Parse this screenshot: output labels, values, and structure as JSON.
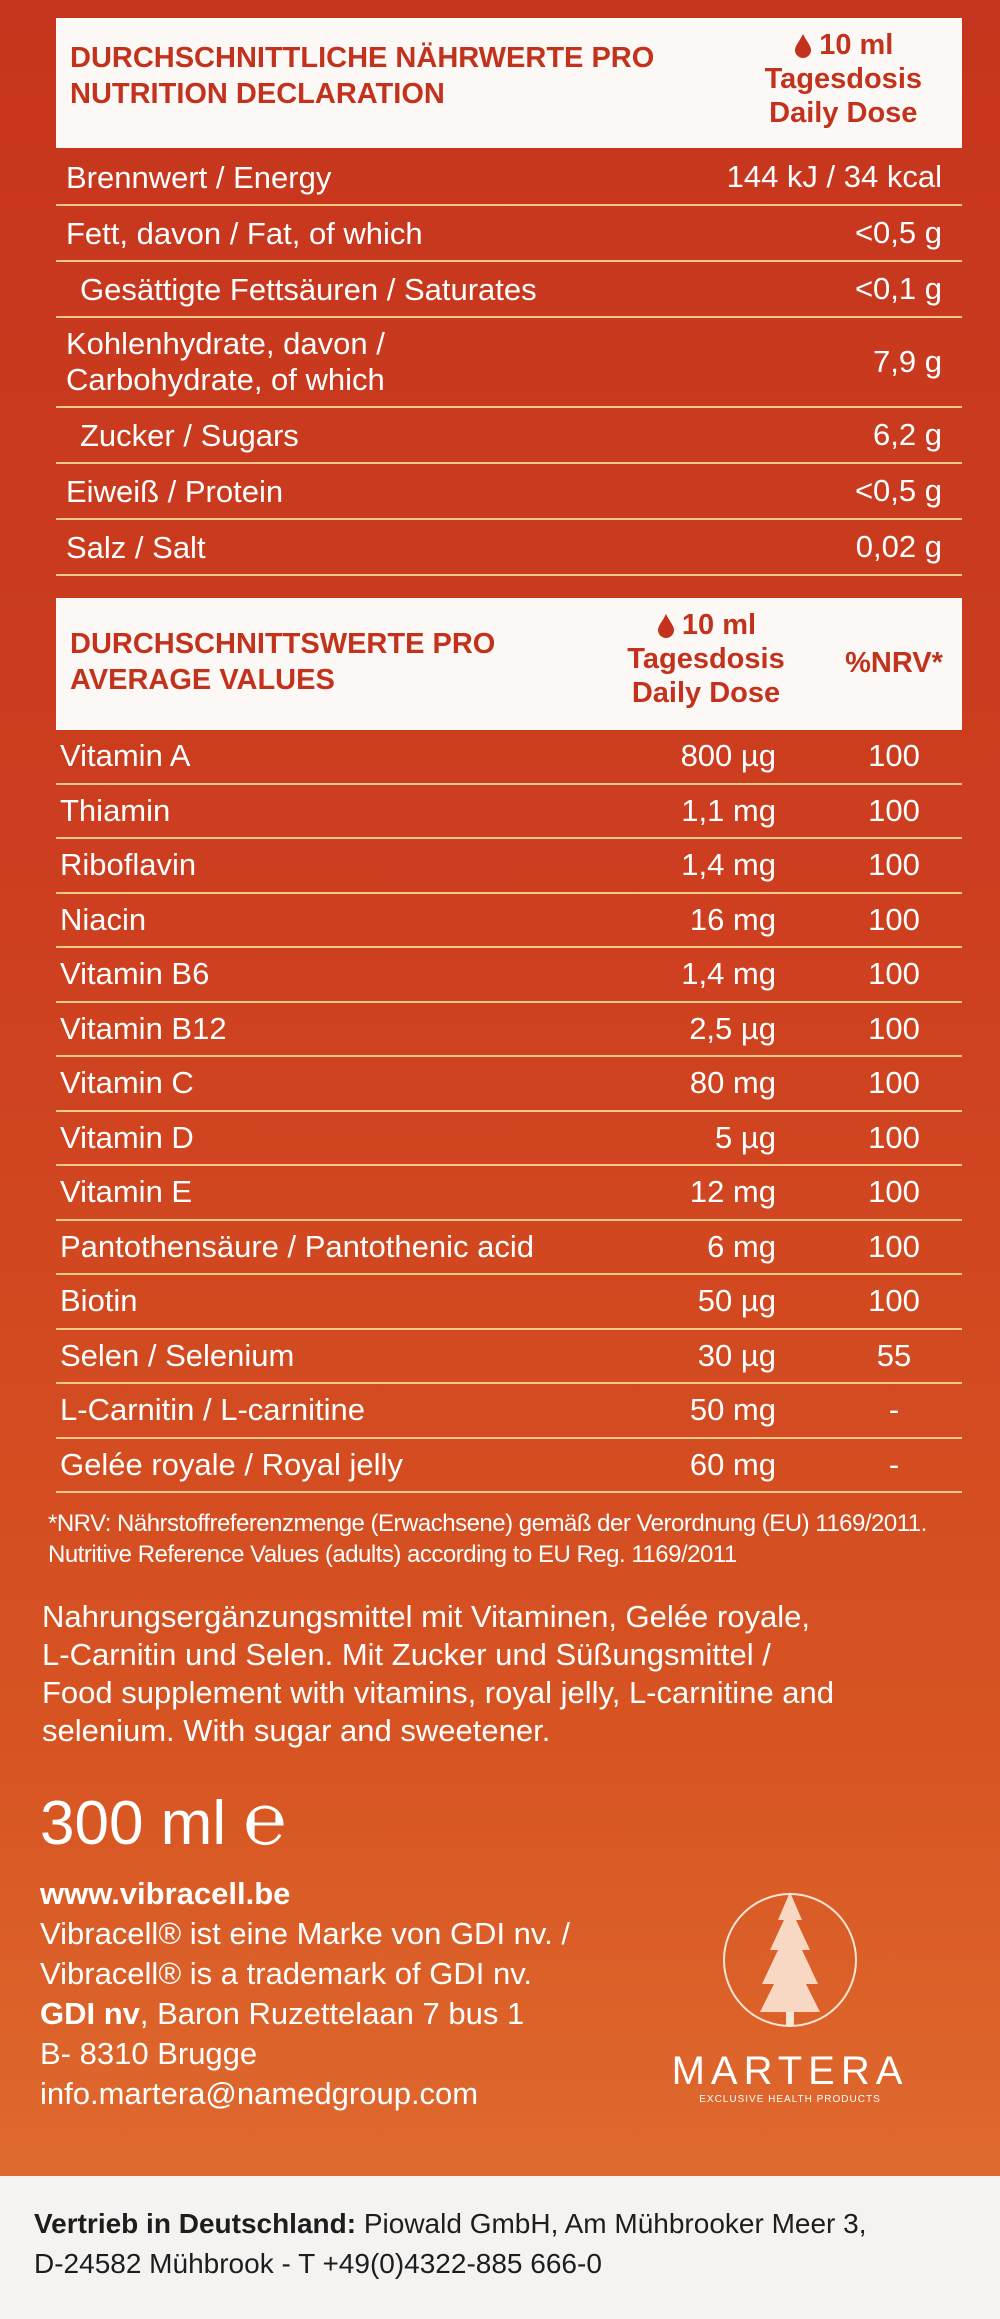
{
  "nutrition": {
    "header": {
      "title": [
        "DURCHSCHNITTLICHE NÄHRWERTE PRO",
        "NUTRITION DECLARATION"
      ],
      "dose": [
        "10 ml",
        "Tagesdosis",
        "Daily Dose"
      ]
    },
    "rows": [
      {
        "label": [
          "Brennwert / Energy"
        ],
        "value": "144 kJ / 34 kcal"
      },
      {
        "label": [
          "Fett, davon / Fat, of which"
        ],
        "value": "<0,5 g"
      },
      {
        "label": [
          "Gesättigte Fettsäuren / Saturates"
        ],
        "value": "<0,1 g"
      },
      {
        "label": [
          "Kohlenhydrate, davon /",
          "Carbohydrate, of which"
        ],
        "value": "7,9 g"
      },
      {
        "label": [
          "Zucker / Sugars"
        ],
        "value": "6,2 g"
      },
      {
        "label": [
          "Eiweiß / Protein"
        ],
        "value": "<0,5 g"
      },
      {
        "label": [
          "Salz / Salt"
        ],
        "value": "0,02 g"
      }
    ]
  },
  "vitamins": {
    "header": {
      "title": [
        "DURCHSCHNITTSWERTE PRO",
        "AVERAGE VALUES"
      ],
      "dose": [
        "10 ml",
        "Tagesdosis",
        "Daily Dose"
      ],
      "nrv": "%NRV*"
    },
    "rows": [
      {
        "label": "Vitamin A",
        "dose": "800 µg",
        "nrv": "100"
      },
      {
        "label": "Thiamin",
        "dose": "1,1 mg",
        "nrv": "100"
      },
      {
        "label": "Riboflavin",
        "dose": "1,4 mg",
        "nrv": "100"
      },
      {
        "label": "Niacin",
        "dose": "16 mg",
        "nrv": "100"
      },
      {
        "label": "Vitamin B6",
        "dose": "1,4 mg",
        "nrv": "100"
      },
      {
        "label": "Vitamin B12",
        "dose": "2,5 µg",
        "nrv": "100"
      },
      {
        "label": "Vitamin C",
        "dose": "80 mg",
        "nrv": "100"
      },
      {
        "label": "Vitamin D",
        "dose": "5 µg",
        "nrv": "100"
      },
      {
        "label": "Vitamin E",
        "dose": "12 mg",
        "nrv": "100"
      },
      {
        "label": "Pantothensäure / Pantothenic acid",
        "dose": "6 mg",
        "nrv": "100"
      },
      {
        "label": "Biotin",
        "dose": "50 µg",
        "nrv": "100"
      },
      {
        "label": "Selen / Selenium",
        "dose": "30 µg",
        "nrv": "55"
      },
      {
        "label": "L-Carnitin / L-carnitine",
        "dose": "50 mg",
        "nrv": "-"
      },
      {
        "label": "Gelée royale / Royal jelly",
        "dose": "60 mg",
        "nrv": "-"
      }
    ]
  },
  "footnote": [
    "*NRV: Nährstoffreferenzmenge (Erwachsene) gemäß der Verordnung (EU) 1169/2011.",
    "Nutritive Reference Values (adults) according to EU Reg. 1169/2011"
  ],
  "description": [
    "Nahrungsergänzungsmittel mit Vitaminen, Gelée royale,",
    "L-Carnitin und Selen. Mit Zucker und Süßungsmittel /",
    "Food supplement with vitamins, royal jelly, L-carnitine and",
    "selenium. With sugar and sweetener."
  ],
  "volume": "300 ml",
  "e_mark": "℮",
  "contact": {
    "website": "www.vibracell.be",
    "trademark": [
      "Vibracell® ist eine Marke von GDI nv. /",
      "Vibracell® is a trademark of GDI nv."
    ],
    "company": "GDI nv",
    "address": [
      ", Baron Ruzettelaan 7 bus 1",
      "B- 8310 Brugge"
    ],
    "email": "info.martera@namedgroup.com"
  },
  "logo": {
    "name": "MARTERA",
    "tagline": "EXCLUSIVE HEALTH PRODUCTS"
  },
  "distribution": {
    "label": "Vertrieb in Deutschland:",
    "lines": [
      " Piowald GmbH, Am Mühbrooker Meer 3,",
      "D-24582 Mühbrook - T +49(0)4322-885 666-0"
    ]
  }
}
